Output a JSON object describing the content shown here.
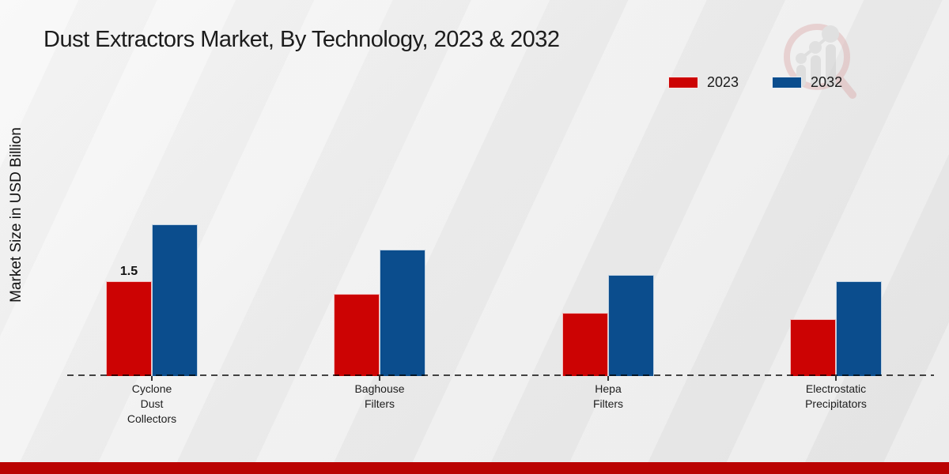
{
  "title": "Dust Extractors Market, By Technology, 2023 & 2032",
  "y_axis_label": "Market Size in USD Billion",
  "legend": [
    {
      "label": "2023",
      "color": "#CC0303"
    },
    {
      "label": "2032",
      "color": "#0B4D8D"
    }
  ],
  "chart_data": {
    "type": "bar",
    "categories": [
      "Cyclone Dust Collectors",
      "Baghouse Filters",
      "Hepa Filters",
      "Electrostatic Precipitators"
    ],
    "category_lines": [
      [
        "Cyclone",
        "Dust",
        "Collectors"
      ],
      [
        "Baghouse",
        "Filters"
      ],
      [
        "Hepa",
        "Filters"
      ],
      [
        "Electrostatic",
        "Precipitators"
      ]
    ],
    "series": [
      {
        "name": "2023",
        "color": "#CC0303",
        "values": [
          1.5,
          1.3,
          1.0,
          0.9
        ]
      },
      {
        "name": "2032",
        "color": "#0B4D8D",
        "values": [
          2.4,
          2.0,
          1.6,
          1.5
        ]
      }
    ],
    "title": "Dust Extractors Market, By Technology, 2023 & 2032",
    "xlabel": "",
    "ylabel": "Market Size in USD Billion",
    "ylim": [
      0,
      3
    ],
    "grid": false,
    "legend_position": "top-right",
    "baseline_style": "dashed",
    "data_labels": [
      {
        "series": "2023",
        "category": "Cyclone Dust Collectors",
        "text": "1.5"
      }
    ]
  },
  "watermark": {
    "name": "market-research-magnifier-logo"
  },
  "footer": {
    "accent_color": "#BA0302"
  }
}
